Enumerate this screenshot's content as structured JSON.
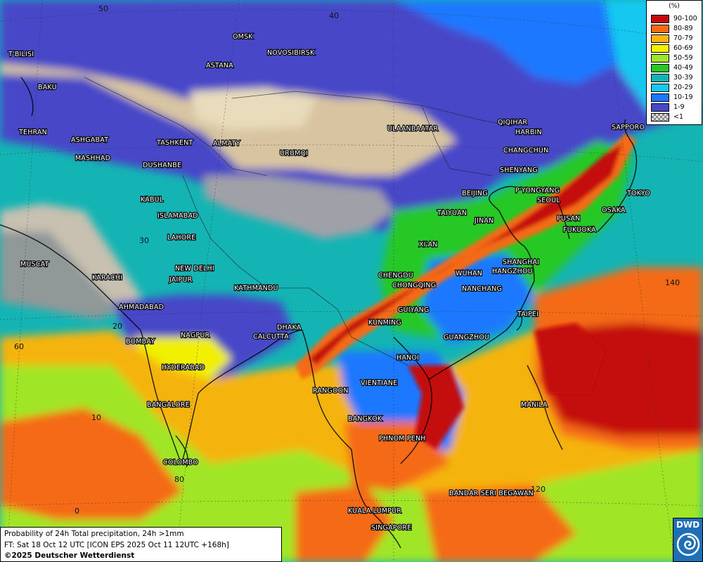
{
  "map": {
    "grid_labels": {
      "lat_30": "30",
      "lat_20": "20",
      "lat_10": "10",
      "lat_0": "0",
      "lat_40": "40",
      "lat_50": "50",
      "lon_60": "60",
      "lon_80": "80",
      "lon_140": "140",
      "lon_120": "120"
    },
    "cities": [
      "T'BILISI",
      "BAKU",
      "TEHRAN",
      "ASHGABAT",
      "MASHHAD",
      "OMSK",
      "NOVOSIBIRSK",
      "ASTANA",
      "TASHKENT",
      "ALMATY",
      "URUMQI",
      "DUSHANBE",
      "KABUL",
      "ISLAMABAD",
      "LAHORE",
      "NEW DELHI",
      "JAIPUR",
      "MUSCAT",
      "KARACHI",
      "AHMADABAD",
      "KATHMANDU",
      "BOMBAY",
      "NAGPUR",
      "DHAKA",
      "CALCUTTA",
      "HYDERABAD",
      "BANGALORE",
      "COLOMBO",
      "ULAANBAATAR",
      "QIQIHAR",
      "HARBIN",
      "CHANGCHUN",
      "SHENYANG",
      "BEIJING",
      "P'YONGYANG",
      "SEOUL",
      "PUSAN",
      "FUKUOKA",
      "OSAKA",
      "TOKYO",
      "SAPPORO",
      "TAIYUAN",
      "JINAN",
      "XI'AN",
      "CHENGDU",
      "CHONGQING",
      "WUHAN",
      "SHANGHAI",
      "HANGZHOU",
      "NANCHANG",
      "GUIYANG",
      "KUNMING",
      "TAIPEI",
      "GUANGZHOU",
      "HANOI",
      "RANGOON",
      "VIENTIANE",
      "BANGKOK",
      "PHNOM PENH",
      "MANILA",
      "BANDAR SERI BEGAWAN",
      "KUALA LUMPUR",
      "SINGAPORE"
    ]
  },
  "legend": {
    "title": "(%)",
    "entries": [
      {
        "label": "90-100",
        "color": "#c40a0a"
      },
      {
        "label": "80-89",
        "color": "#f56a14"
      },
      {
        "label": "70-79",
        "color": "#f5b40f"
      },
      {
        "label": "60-69",
        "color": "#f0f000"
      },
      {
        "label": "50-59",
        "color": "#a0e628"
      },
      {
        "label": "40-49",
        "color": "#28c828"
      },
      {
        "label": "30-39",
        "color": "#14b4b4"
      },
      {
        "label": "20-29",
        "color": "#14c8f0"
      },
      {
        "label": "10-19",
        "color": "#1e78ff"
      },
      {
        "label": "1-9",
        "color": "#4646c8"
      },
      {
        "label": "<1",
        "color": "pattern"
      }
    ]
  },
  "info": {
    "line1": "Probability of 24h Total precipitation, 24h >1mm",
    "line2": "FT: Sat 18 Oct 12 UTC [ICON EPS 2025 Oct 11 12UTC +168h]",
    "line3": "©2025 Deutscher Wetterdienst"
  },
  "logo": {
    "text": "DWD"
  }
}
